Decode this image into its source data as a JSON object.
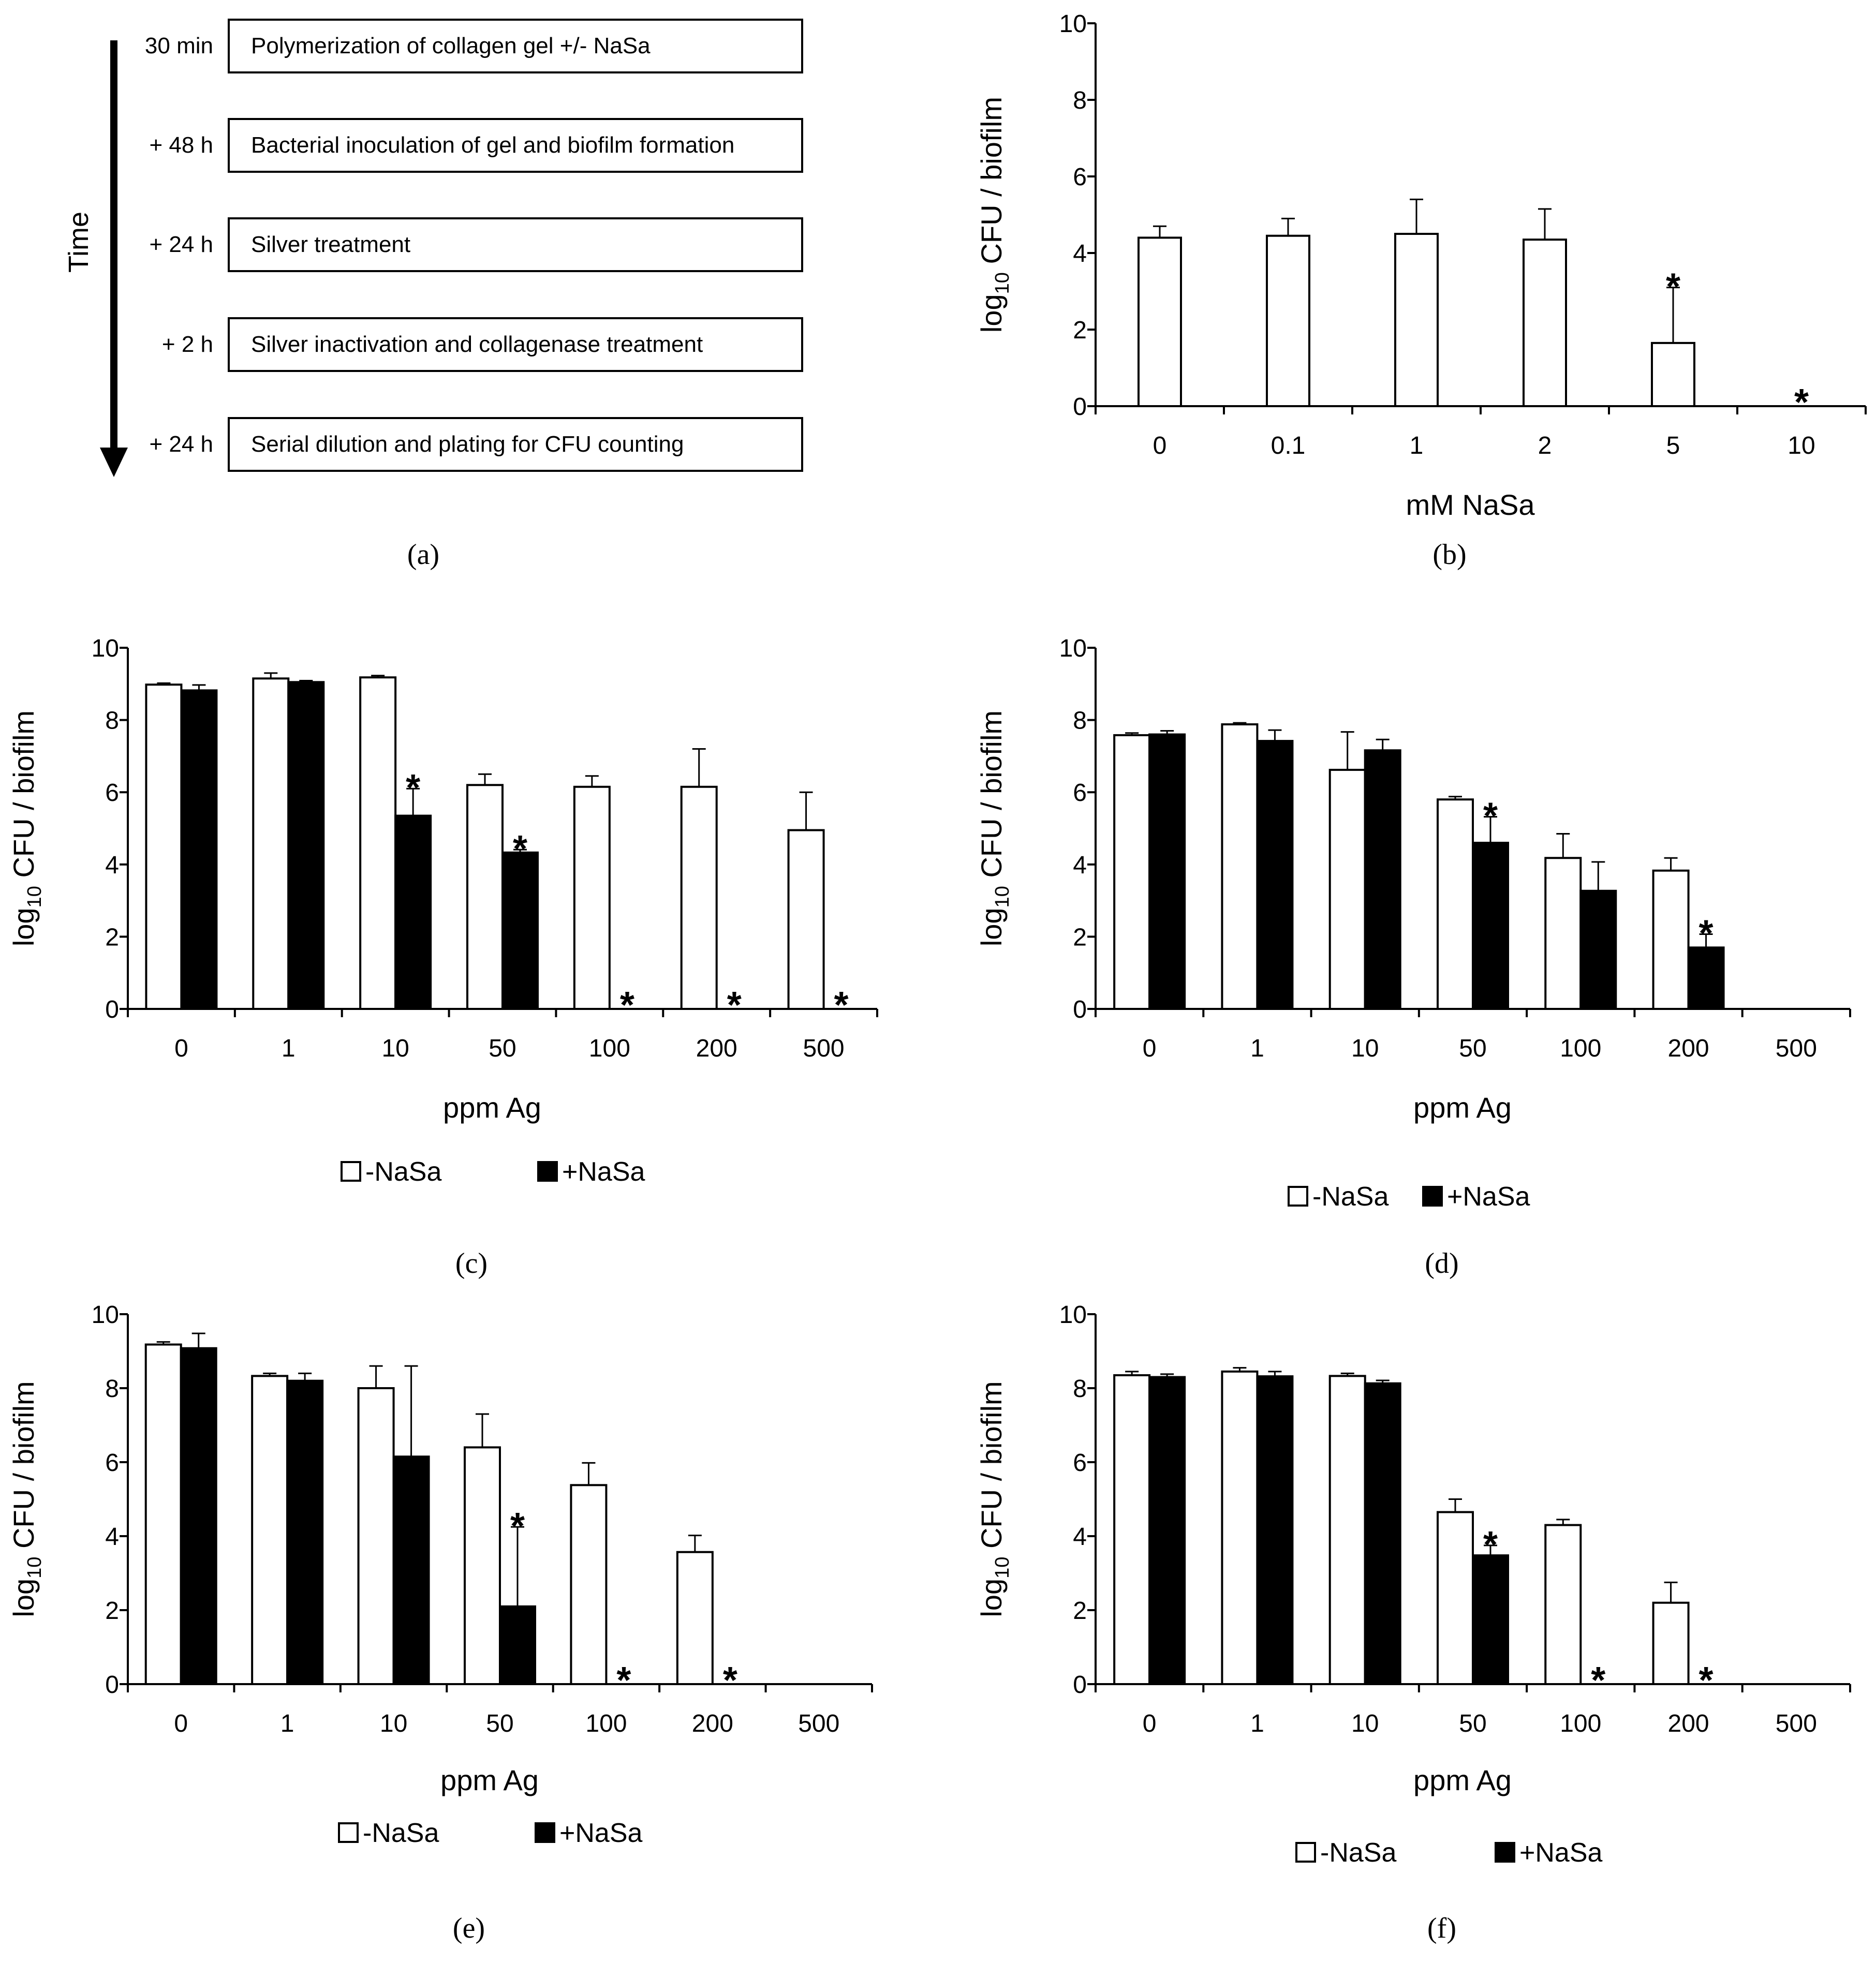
{
  "panel_a": {
    "caption": "(a)",
    "axis_label": "Time",
    "steps": [
      {
        "time": "30 min",
        "text": "Polymerization of collagen gel +/- NaSa"
      },
      {
        "time": "+ 48 h",
        "text": "Bacterial inoculation of gel and biofilm formation"
      },
      {
        "time": "+ 24 h",
        "text": "Silver treatment"
      },
      {
        "time": "+ 2 h",
        "text": "Silver inactivation and collagenase treatment"
      },
      {
        "time": "+ 24 h",
        "text": "Serial dilution and plating for CFU counting"
      }
    ]
  },
  "chart_data": [
    {
      "id": "b",
      "caption": "(b)",
      "type": "bar",
      "xlabel": "mM NaSa",
      "ylabel_main": "log",
      "ylabel_sub": "10",
      "ylabel_rest": " CFU / biofilm",
      "ylim": [
        0,
        10
      ],
      "yticks": [
        "0",
        "2",
        "4",
        "6",
        "8",
        "10"
      ],
      "categories": [
        "0",
        "0.1",
        "1",
        "2",
        "5",
        "10"
      ],
      "series": [
        {
          "fill": "#ffffff",
          "values": [
            4.4,
            4.45,
            4.5,
            4.35,
            1.65,
            0
          ],
          "errors": [
            0.3,
            0.45,
            0.9,
            0.8,
            1.45,
            0
          ],
          "stars": [
            false,
            false,
            false,
            false,
            true,
            true
          ]
        }
      ],
      "grid": false
    },
    {
      "id": "c",
      "caption": "(c)",
      "type": "bar",
      "xlabel": "ppm Ag",
      "ylabel_main": "log",
      "ylabel_sub": "10",
      "ylabel_rest": " CFU / biofilm",
      "ylim": [
        0,
        10
      ],
      "yticks": [
        "0",
        "2",
        "4",
        "6",
        "8",
        "10"
      ],
      "categories": [
        "0",
        "1",
        "10",
        "50",
        "100",
        "200",
        "500"
      ],
      "legend": [
        "-NaSa",
        "+NaSa"
      ],
      "series": [
        {
          "name": "-NaSa",
          "fill": "#ffffff",
          "values": [
            8.98,
            9.15,
            9.18,
            6.2,
            6.15,
            6.15,
            4.95
          ],
          "errors": [
            0.04,
            0.15,
            0.05,
            0.3,
            0.3,
            1.05,
            1.05
          ],
          "stars": [
            false,
            false,
            false,
            false,
            false,
            false,
            false
          ]
        },
        {
          "name": "+NaSa",
          "fill": "#000000",
          "values": [
            8.82,
            9.05,
            5.35,
            4.33,
            0,
            0,
            0
          ],
          "errors": [
            0.15,
            0.04,
            0.75,
            0.08,
            0,
            0,
            0
          ],
          "stars": [
            false,
            false,
            true,
            true,
            true,
            true,
            true
          ]
        }
      ],
      "grid": false
    },
    {
      "id": "d",
      "caption": "(d)",
      "type": "bar",
      "xlabel": "ppm Ag",
      "ylabel_main": "log",
      "ylabel_sub": "10",
      "ylabel_rest": " CFU / biofilm",
      "ylim": [
        0,
        10
      ],
      "yticks": [
        "0",
        "2",
        "4",
        "6",
        "8",
        "10"
      ],
      "categories": [
        "0",
        "1",
        "10",
        "50",
        "100",
        "200",
        "500"
      ],
      "legend": [
        "-NaSa",
        "+NaSa"
      ],
      "series": [
        {
          "name": "-NaSa",
          "fill": "#ffffff",
          "values": [
            7.58,
            7.88,
            6.62,
            5.8,
            4.18,
            3.83,
            0
          ],
          "errors": [
            0.06,
            0.04,
            1.05,
            0.08,
            0.67,
            0.35,
            0
          ],
          "stars": [
            false,
            false,
            false,
            false,
            false,
            false,
            false
          ]
        },
        {
          "name": "+NaSa",
          "fill": "#000000",
          "values": [
            7.6,
            7.42,
            7.16,
            4.6,
            3.27,
            1.7,
            0
          ],
          "errors": [
            0.1,
            0.3,
            0.3,
            0.72,
            0.8,
            0.37,
            0
          ],
          "stars": [
            false,
            false,
            false,
            true,
            false,
            true,
            false
          ]
        }
      ],
      "grid": false
    },
    {
      "id": "e",
      "caption": "(e)",
      "type": "bar",
      "xlabel": "ppm Ag",
      "ylabel_main": "log",
      "ylabel_sub": "10",
      "ylabel_rest": " CFU / biofilm",
      "ylim": [
        0,
        10
      ],
      "yticks": [
        "0",
        "2",
        "4",
        "6",
        "8",
        "10"
      ],
      "categories": [
        "0",
        "1",
        "10",
        "50",
        "100",
        "200",
        "500"
      ],
      "legend": [
        "-NaSa",
        "+NaSa"
      ],
      "series": [
        {
          "name": "-NaSa",
          "fill": "#ffffff",
          "values": [
            9.18,
            8.33,
            8.0,
            6.4,
            5.38,
            3.57,
            0
          ],
          "errors": [
            0.07,
            0.07,
            0.6,
            0.9,
            0.6,
            0.45,
            0
          ],
          "stars": [
            false,
            false,
            false,
            false,
            false,
            false,
            false
          ]
        },
        {
          "name": "+NaSa",
          "fill": "#000000",
          "values": [
            9.08,
            8.2,
            6.15,
            2.1,
            0,
            0,
            0
          ],
          "errors": [
            0.4,
            0.2,
            2.45,
            2.15,
            0,
            0,
            0
          ],
          "stars": [
            false,
            false,
            false,
            true,
            true,
            true,
            false
          ]
        }
      ],
      "grid": false
    },
    {
      "id": "f",
      "caption": "(f)",
      "type": "bar",
      "xlabel": "ppm Ag",
      "ylabel_main": "log",
      "ylabel_sub": "10",
      "ylabel_rest": " CFU / biofilm",
      "ylim": [
        0,
        10
      ],
      "yticks": [
        "0",
        "2",
        "4",
        "6",
        "8",
        "10"
      ],
      "categories": [
        "0",
        "1",
        "10",
        "50",
        "100",
        "200",
        "500"
      ],
      "legend": [
        "-NaSa",
        "+NaSa"
      ],
      "series": [
        {
          "name": "-NaSa",
          "fill": "#ffffff",
          "values": [
            8.35,
            8.45,
            8.33,
            4.65,
            4.3,
            2.2,
            0
          ],
          "errors": [
            0.1,
            0.1,
            0.07,
            0.35,
            0.15,
            0.55,
            0
          ],
          "stars": [
            false,
            false,
            false,
            false,
            false,
            false,
            false
          ]
        },
        {
          "name": "+NaSa",
          "fill": "#000000",
          "values": [
            8.3,
            8.32,
            8.13,
            3.48,
            0,
            0,
            0
          ],
          "errors": [
            0.08,
            0.13,
            0.08,
            0.27,
            0,
            0,
            0
          ],
          "stars": [
            false,
            false,
            false,
            true,
            true,
            true,
            false
          ]
        }
      ],
      "grid": false
    }
  ]
}
